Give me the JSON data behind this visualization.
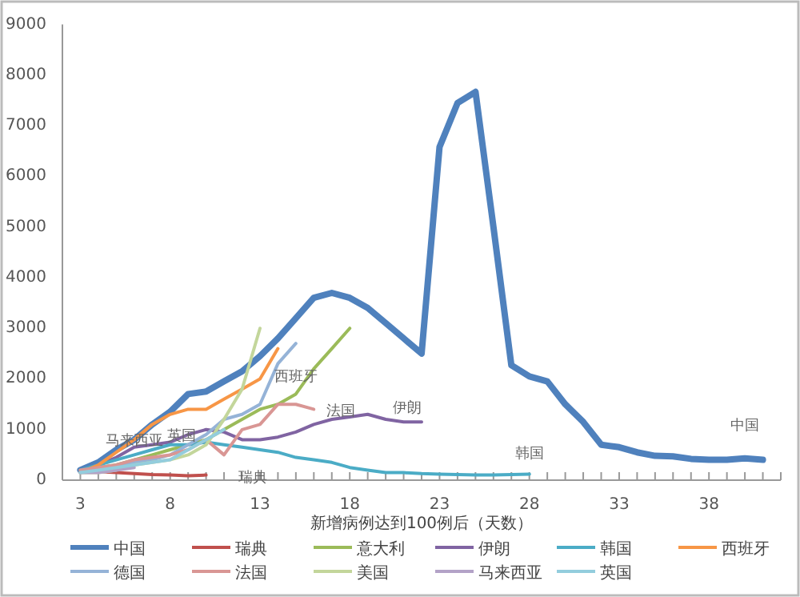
{
  "chart_data": {
    "type": "line",
    "xlabel": "新增病例达到100例后（天数）",
    "xlim": [
      2,
      42
    ],
    "xticks": [
      3,
      8,
      13,
      18,
      23,
      28,
      33,
      38
    ],
    "ylim": [
      0,
      9000
    ],
    "yticks": [
      0,
      1000,
      2000,
      3000,
      4000,
      5000,
      6000,
      7000,
      8000,
      9000
    ],
    "grid": false,
    "legend": "bottom",
    "marker": "none",
    "line_style": "solid",
    "series": [
      {
        "name": "中国",
        "color": "#4f81bd",
        "x": [
          3,
          4,
          5,
          6,
          7,
          8,
          9,
          10,
          11,
          12,
          13,
          14,
          15,
          16,
          17,
          18,
          19,
          20,
          21,
          22,
          23,
          24,
          25,
          26,
          27,
          28,
          29,
          30,
          31,
          32,
          33,
          34,
          35,
          36,
          37,
          38,
          39,
          40,
          41
        ],
        "values": [
          200,
          350,
          600,
          800,
          1100,
          1350,
          1700,
          1750,
          1950,
          2150,
          2450,
          2800,
          3200,
          3600,
          3700,
          3600,
          3400,
          3100,
          2800,
          2500,
          6580,
          7450,
          7670,
          5000,
          2270,
          2050,
          1950,
          1500,
          1150,
          700,
          650,
          550,
          480,
          470,
          420,
          400,
          400,
          430,
          400
        ]
      },
      {
        "name": "瑞典",
        "color": "#c0504d",
        "x": [
          3,
          4,
          5,
          6,
          7,
          8,
          9,
          10
        ],
        "values": [
          180,
          170,
          150,
          130,
          110,
          100,
          90,
          100
        ]
      },
      {
        "name": "意大利",
        "color": "#9bbb59",
        "x": [
          3,
          4,
          5,
          6,
          7,
          8,
          9,
          10,
          11,
          12,
          13,
          14,
          15,
          16,
          17,
          18
        ],
        "values": [
          200,
          250,
          300,
          400,
          500,
          600,
          700,
          800,
          1000,
          1200,
          1400,
          1500,
          1700,
          2200,
          2600,
          3000
        ]
      },
      {
        "name": "伊朗",
        "color": "#8064a2",
        "x": [
          3,
          4,
          5,
          6,
          7,
          8,
          9,
          10,
          11,
          12,
          13,
          14,
          15,
          16,
          17,
          18,
          19,
          20,
          21,
          22
        ],
        "values": [
          200,
          300,
          450,
          650,
          700,
          750,
          900,
          1000,
          950,
          800,
          800,
          850,
          950,
          1100,
          1200,
          1250,
          1300,
          1200,
          1150,
          1150
        ]
      },
      {
        "name": "韩国",
        "color": "#4bacc6",
        "x": [
          3,
          4,
          5,
          6,
          7,
          8,
          9,
          10,
          11,
          12,
          13,
          14,
          15,
          16,
          17,
          18,
          19,
          20,
          21,
          22,
          23,
          24,
          25,
          26,
          27,
          28
        ],
        "values": [
          200,
          300,
          400,
          500,
          600,
          700,
          700,
          750,
          700,
          650,
          600,
          550,
          450,
          400,
          350,
          250,
          200,
          150,
          150,
          130,
          120,
          110,
          100,
          100,
          110,
          120
        ]
      },
      {
        "name": "西班牙",
        "color": "#f79646",
        "x": [
          3,
          4,
          5,
          6,
          7,
          8,
          9,
          10,
          11,
          12,
          13,
          14
        ],
        "values": [
          150,
          300,
          550,
          800,
          1100,
          1300,
          1400,
          1400,
          1600,
          1800,
          2000,
          2600
        ]
      },
      {
        "name": "德国",
        "color": "#95b3d7",
        "x": [
          3,
          4,
          5,
          6,
          7,
          8,
          9,
          10,
          11,
          12,
          13,
          14,
          15
        ],
        "values": [
          150,
          200,
          250,
          350,
          400,
          500,
          700,
          900,
          1200,
          1300,
          1500,
          2300,
          2700
        ]
      },
      {
        "name": "法国",
        "color": "#d99694",
        "x": [
          3,
          4,
          5,
          6,
          7,
          8,
          9,
          10,
          11,
          12,
          13,
          14,
          15,
          16
        ],
        "values": [
          200,
          250,
          300,
          400,
          450,
          500,
          600,
          800,
          500,
          1000,
          1100,
          1500,
          1500,
          1400
        ]
      },
      {
        "name": "美国",
        "color": "#c3d69b",
        "x": [
          3,
          4,
          5,
          6,
          7,
          8,
          9,
          10,
          11,
          12,
          13
        ],
        "values": [
          150,
          150,
          200,
          300,
          350,
          400,
          500,
          700,
          1200,
          1800,
          3000
        ]
      },
      {
        "name": "马来西亚",
        "color": "#b3a2c7",
        "x": [
          3,
          4,
          5,
          6
        ],
        "values": [
          150,
          150,
          200,
          250
        ]
      },
      {
        "name": "英国",
        "color": "#93cddd",
        "x": [
          3,
          4,
          5,
          6,
          7,
          8,
          9,
          10,
          11
        ],
        "values": [
          150,
          200,
          250,
          300,
          350,
          400,
          600,
          800,
          1000
        ]
      }
    ],
    "annotations": [
      {
        "text": "中国",
        "x": 40,
        "y": 430
      },
      {
        "text": "瑞典",
        "x": 10,
        "y": 100
      },
      {
        "text": "西班牙",
        "x": 14,
        "y": 2600
      },
      {
        "text": "法国",
        "x": 16,
        "y": 1400
      },
      {
        "text": "伊朗",
        "x": 22,
        "y": 1150
      },
      {
        "text": "韩国",
        "x": 28,
        "y": 120
      },
      {
        "text": "马来西亚",
        "x": 6,
        "y": 250
      },
      {
        "text": "英国",
        "x": 9,
        "y": 600
      }
    ]
  }
}
